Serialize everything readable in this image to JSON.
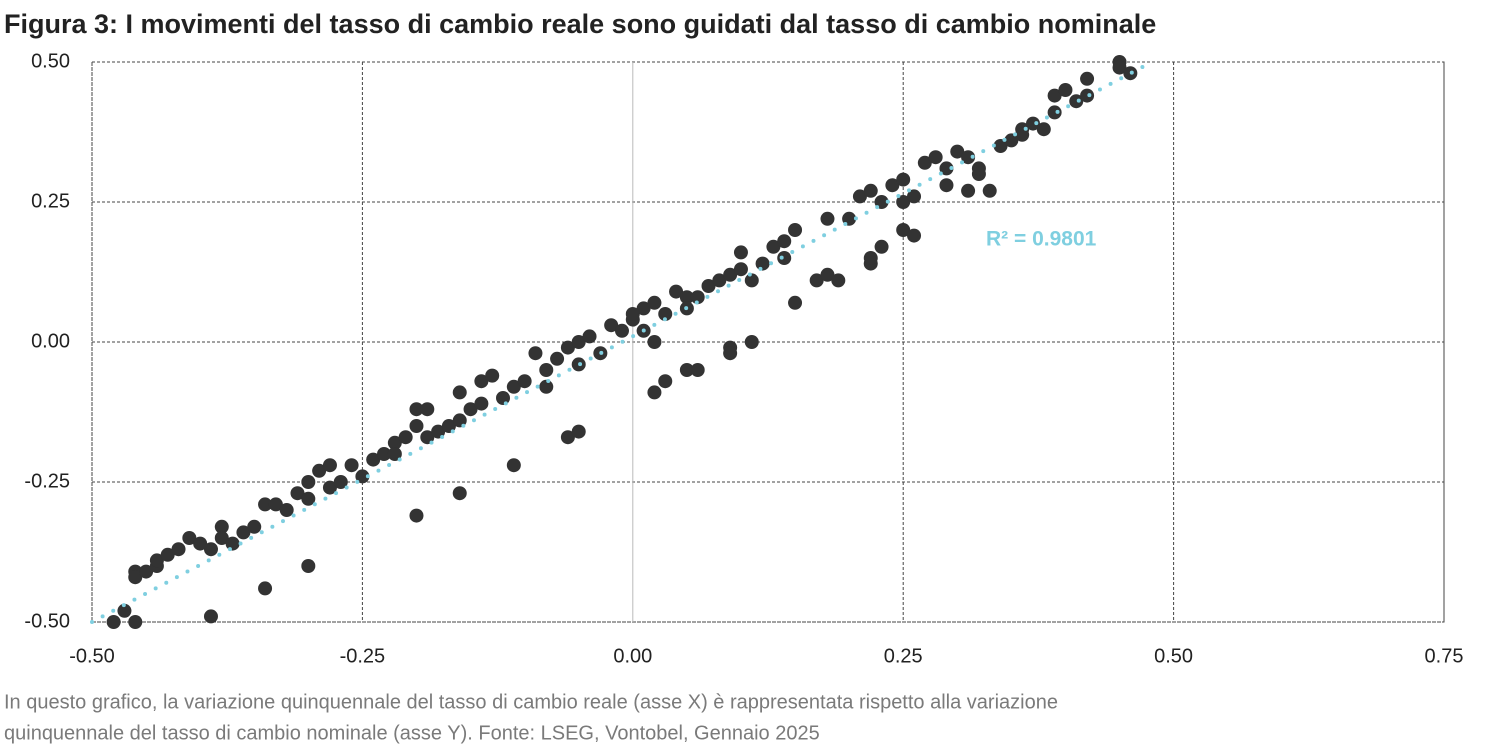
{
  "chart_data": {
    "type": "scatter",
    "title": "Figura 3: I movimenti del tasso di cambio reale sono guidati dal tasso di cambio nominale",
    "color": "#333333",
    "x": [
      -0.48,
      -0.47,
      -0.46,
      -0.46,
      -0.46,
      -0.45,
      -0.44,
      -0.44,
      -0.43,
      -0.42,
      -0.41,
      -0.4,
      -0.39,
      -0.38,
      -0.38,
      -0.37,
      -0.36,
      -0.35,
      -0.34,
      -0.33,
      -0.32,
      -0.31,
      -0.3,
      -0.3,
      -0.29,
      -0.28,
      -0.28,
      -0.27,
      -0.26,
      -0.25,
      -0.24,
      -0.23,
      -0.22,
      -0.22,
      -0.21,
      -0.2,
      -0.2,
      -0.19,
      -0.19,
      -0.18,
      -0.17,
      -0.16,
      -0.16,
      -0.15,
      -0.14,
      -0.14,
      -0.13,
      -0.12,
      -0.11,
      -0.1,
      -0.09,
      -0.08,
      -0.08,
      -0.07,
      -0.06,
      -0.05,
      -0.05,
      -0.04,
      -0.03,
      -0.02,
      -0.01,
      0,
      0,
      0.01,
      0.01,
      0.02,
      0.03,
      0.04,
      0.05,
      0.05,
      0.06,
      0.07,
      0.08,
      0.09,
      0.1,
      0.1,
      0.11,
      0.12,
      0.13,
      0.14,
      0.14,
      0.15,
      0.18,
      0.2,
      0.21,
      0.22,
      0.23,
      0.24,
      0.25,
      0.25,
      0.26,
      0.27,
      0.28,
      0.29,
      0.29,
      0.3,
      0.31,
      0.31,
      0.32,
      0.33,
      0.34,
      0.35,
      0.36,
      0.36,
      0.37,
      0.38,
      0.39,
      0.39,
      0.4,
      0.41,
      0.42,
      0.42,
      0.45,
      0.45,
      0.46,
      0.32,
      -0.34,
      -0.39,
      -0.3,
      -0.2,
      -0.16,
      -0.11,
      -0.06,
      -0.05,
      0.02,
      0.03,
      0.05,
      0.06,
      0.09,
      0.09,
      0.11,
      0.15,
      0.17,
      0.18,
      0.19,
      0.22,
      0.22,
      0.23,
      0.25,
      0.26,
      0.02
    ],
    "y": [
      -0.5,
      -0.48,
      -0.5,
      -0.41,
      -0.42,
      -0.41,
      -0.4,
      -0.39,
      -0.38,
      -0.37,
      -0.35,
      -0.36,
      -0.37,
      -0.33,
      -0.35,
      -0.36,
      -0.34,
      -0.33,
      -0.29,
      -0.29,
      -0.3,
      -0.27,
      -0.25,
      -0.28,
      -0.23,
      -0.22,
      -0.26,
      -0.25,
      -0.22,
      -0.24,
      -0.21,
      -0.2,
      -0.18,
      -0.2,
      -0.17,
      -0.15,
      -0.12,
      -0.12,
      -0.17,
      -0.16,
      -0.15,
      -0.09,
      -0.14,
      -0.12,
      -0.07,
      -0.11,
      -0.06,
      -0.1,
      -0.08,
      -0.07,
      -0.02,
      -0.05,
      -0.08,
      -0.03,
      -0.01,
      0,
      -0.04,
      0.01,
      -0.02,
      0.03,
      0.02,
      0.04,
      0.05,
      0.06,
      0.02,
      0.07,
      0.05,
      0.09,
      0.08,
      0.06,
      0.08,
      0.1,
      0.11,
      0.12,
      0.13,
      0.16,
      0.11,
      0.14,
      0.17,
      0.18,
      0.15,
      0.2,
      0.22,
      0.22,
      0.26,
      0.27,
      0.25,
      0.28,
      0.29,
      0.25,
      0.26,
      0.32,
      0.33,
      0.31,
      0.28,
      0.34,
      0.33,
      0.27,
      0.3,
      0.27,
      0.35,
      0.36,
      0.38,
      0.37,
      0.39,
      0.38,
      0.41,
      0.44,
      0.45,
      0.43,
      0.47,
      0.44,
      0.5,
      0.49,
      0.48,
      0.31,
      -0.44,
      -0.49,
      -0.4,
      -0.31,
      -0.27,
      -0.22,
      -0.17,
      -0.16,
      -0.09,
      -0.07,
      -0.05,
      -0.05,
      -0.01,
      -0.02,
      0.0,
      0.07,
      0.11,
      0.12,
      0.11,
      0.14,
      0.15,
      0.17,
      0.2,
      0.19,
      0.0
    ],
    "trendline": {
      "x": [
        -0.5,
        0.48
      ],
      "y": [
        -0.5,
        0.5
      ],
      "color": "#7fcfe0",
      "label": "R² = 0.9801"
    },
    "xlim": [
      -0.5,
      0.75
    ],
    "ylim": [
      -0.5,
      0.5
    ],
    "xticks": [
      {
        "value": -0.5,
        "label": "-0.50"
      },
      {
        "value": -0.25,
        "label": "-0.25"
      },
      {
        "value": 0,
        "label": "0.00"
      },
      {
        "value": 0.25,
        "label": "0.25"
      },
      {
        "value": 0.5,
        "label": "0.50"
      },
      {
        "value": 0.75,
        "label": "0.75"
      }
    ],
    "yticks": [
      {
        "value": -0.5,
        "label": "-0.50"
      },
      {
        "value": -0.25,
        "label": "-0.25"
      },
      {
        "value": 0,
        "label": "0.00"
      },
      {
        "value": 0.25,
        "label": "0.25"
      },
      {
        "value": 0.5,
        "label": "0.50"
      }
    ],
    "grid": true,
    "note": [
      "In questo grafico, la variazione quinquennale del tasso di cambio reale (asse X) è rappresentata rispetto alla variazione",
      "quinquennale del tasso di cambio nominale (asse Y). Fonte: LSEG, Vontobel, Gennaio 2025"
    ]
  }
}
